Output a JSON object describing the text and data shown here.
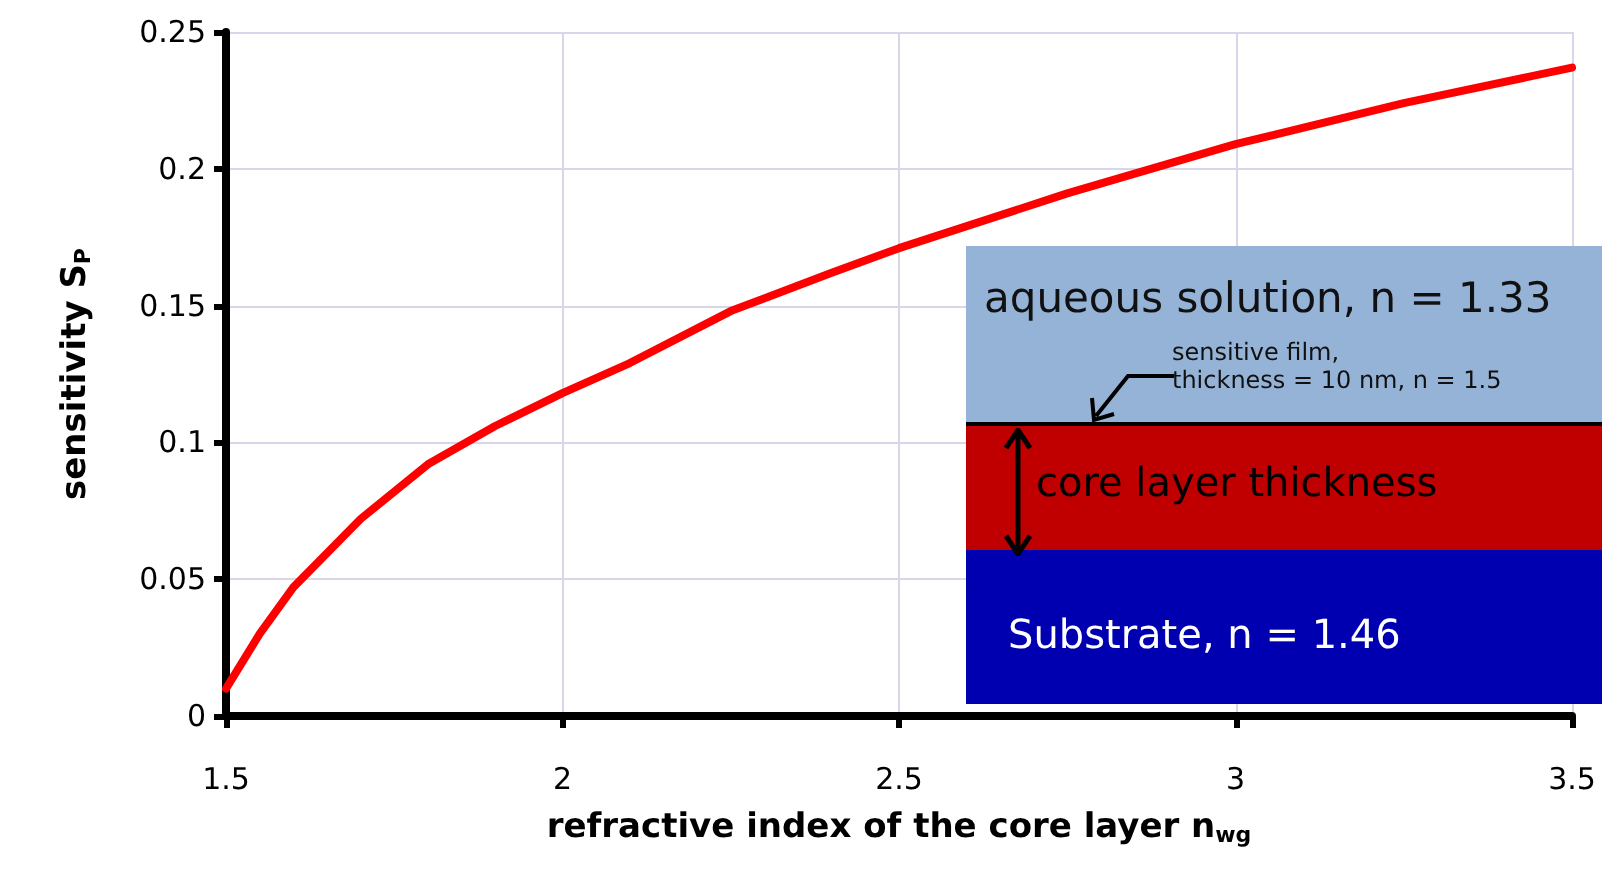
{
  "chart_data": {
    "type": "line",
    "xlabel": "refractive index of the core layer n$_{wg}$",
    "ylabel": "sensitivity S$_{P}$",
    "x": [
      1.5,
      1.55,
      1.6,
      1.7,
      1.8,
      1.9,
      2.0,
      2.1,
      2.25,
      2.4,
      2.5,
      2.75,
      3.0,
      3.25,
      3.5
    ],
    "series": [
      {
        "color": "#ff0000",
        "values": [
          0.01,
          0.03,
          0.047,
          0.072,
          0.092,
          0.106,
          0.118,
          0.129,
          0.148,
          0.162,
          0.171,
          0.191,
          0.209,
          0.224,
          0.237
        ]
      }
    ],
    "xlim": [
      1.5,
      3.5
    ],
    "xticks": [
      1.5,
      2,
      2.5,
      3,
      3.5
    ],
    "ylim": [
      0,
      0.25
    ],
    "yticks": [
      0,
      0.05,
      0.1,
      0.15,
      0.2,
      0.25
    ],
    "grid": true,
    "marker": "none",
    "line_style": "solid",
    "annotations": [
      "aqueous solution, n = 1.33",
      "sensitive film,\nthickness = 10 nm, n = 1.5",
      "core layer thickness",
      "Substrate, n = 1.46"
    ]
  }
}
